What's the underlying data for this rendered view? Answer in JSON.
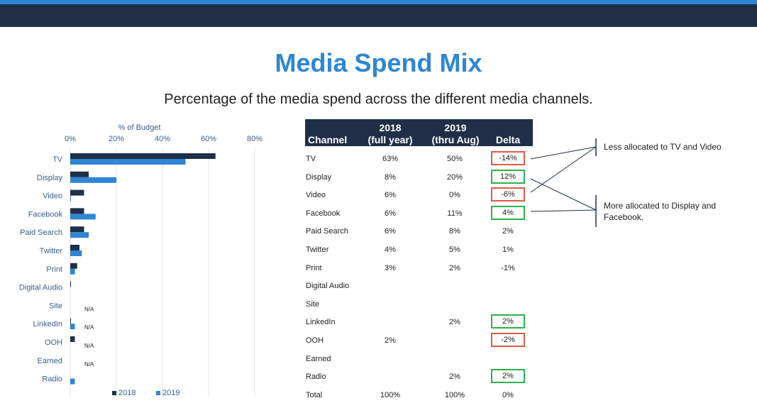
{
  "page": {
    "title": "Media Spend Mix",
    "subtitle": "Percentage of the media spend across the different media channels."
  },
  "colors": {
    "series_2018": "#1f2f48",
    "series_2019": "#2e86d4",
    "increase_box": "#2bb24c",
    "decrease_box": "#e05a47",
    "axis_text": "#3a5f8a"
  },
  "chart_data": {
    "type": "bar",
    "orientation": "horizontal",
    "xlabel": "% of Budget",
    "xlim": [
      0,
      80
    ],
    "xticks": [
      "0%",
      "20%",
      "40%",
      "60%",
      "80%"
    ],
    "grid": true,
    "legend_position": "bottom",
    "categories": [
      "TV",
      "Display",
      "Video",
      "Facebook",
      "Paid Search",
      "Twitter",
      "Print",
      "Digital Audio",
      "Site",
      "LinkedIn",
      "OOH",
      "Earned",
      "Radio"
    ],
    "series": [
      {
        "name": "2018",
        "values": [
          63,
          8,
          6,
          6,
          6,
          4,
          3,
          0.3,
          0,
          0.3,
          2,
          0,
          0
        ]
      },
      {
        "name": "2019",
        "values": [
          50,
          20,
          0.3,
          11,
          8,
          5,
          2,
          0,
          0,
          2,
          0,
          0,
          2
        ]
      }
    ],
    "annotations": [
      {
        "category": "Site",
        "text": "N/A"
      },
      {
        "category": "LinkedIn",
        "text": "N/A"
      },
      {
        "category": "OOH",
        "text": "N/A"
      },
      {
        "category": "Earned",
        "text": "N/A"
      }
    ]
  },
  "table": {
    "headers": {
      "channel": "Channel",
      "y2018_line1": "2018",
      "y2018_line2": "(full year)",
      "y2019_line1": "2019",
      "y2019_line2": "(thru Aug)",
      "delta": "Delta"
    },
    "rows": [
      {
        "channel": "TV",
        "y2018": "63%",
        "y2019": "50%",
        "delta": "-14%",
        "highlight": "red"
      },
      {
        "channel": "Display",
        "y2018": "8%",
        "y2019": "20%",
        "delta": "12%",
        "highlight": "green"
      },
      {
        "channel": "Video",
        "y2018": "6%",
        "y2019": "0%",
        "delta": "-6%",
        "highlight": "red"
      },
      {
        "channel": "Facebook",
        "y2018": "6%",
        "y2019": "11%",
        "delta": "4%",
        "highlight": "green"
      },
      {
        "channel": "Paid Search",
        "y2018": "6%",
        "y2019": "8%",
        "delta": "2%",
        "highlight": ""
      },
      {
        "channel": "Twitter",
        "y2018": "4%",
        "y2019": "5%",
        "delta": "1%",
        "highlight": ""
      },
      {
        "channel": "Print",
        "y2018": "3%",
        "y2019": "2%",
        "delta": "-1%",
        "highlight": ""
      },
      {
        "channel": "Digital Audio",
        "y2018": "",
        "y2019": "",
        "delta": "",
        "highlight": ""
      },
      {
        "channel": "Site",
        "y2018": "",
        "y2019": "",
        "delta": "",
        "highlight": ""
      },
      {
        "channel": "LinkedIn",
        "y2018": "",
        "y2019": "2%",
        "delta": "2%",
        "highlight": "green"
      },
      {
        "channel": "OOH",
        "y2018": "2%",
        "y2019": "",
        "delta": "-2%",
        "highlight": "red"
      },
      {
        "channel": "Earned",
        "y2018": "",
        "y2019": "",
        "delta": "",
        "highlight": ""
      },
      {
        "channel": "Radio",
        "y2018": "",
        "y2019": "2%",
        "delta": "2%",
        "highlight": "green"
      },
      {
        "channel": "Total",
        "y2018": "100%",
        "y2019": "100%",
        "delta": "0%",
        "highlight": ""
      }
    ]
  },
  "callouts": {
    "less": "Less allocated to TV and Video",
    "more_line1": "More allocated to Display and",
    "more_line2": "Facebook."
  }
}
